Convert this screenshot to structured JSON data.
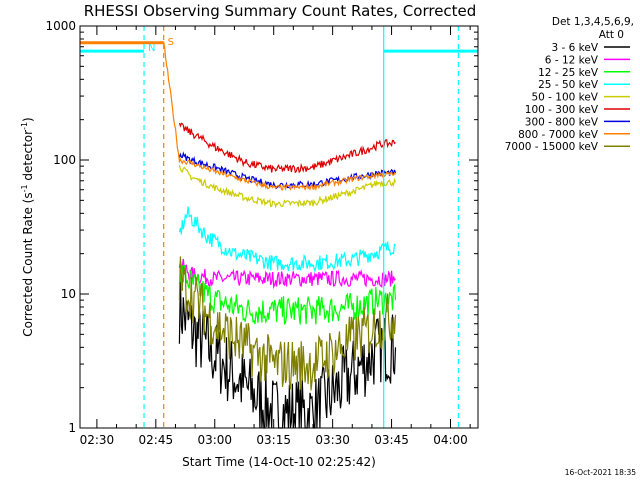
{
  "chart_data": {
    "type": "line",
    "title": "RHESSI Observing Summary Count Rates, Corrected",
    "xlabel": "Start Time (14-Oct-10 02:25:42)",
    "ylabel_main": "Corrected Count Rate (s",
    "ylabel_sup1": "-1",
    "ylabel_mid": " detector",
    "ylabel_sup2": "-1",
    "ylabel_end": ")",
    "y_scale": "log",
    "ylim": [
      1,
      1000
    ],
    "xlim": [
      "02:25:42",
      "04:07"
    ],
    "x_ticks": [
      "02:30",
      "02:45",
      "03:00",
      "03:15",
      "03:30",
      "03:45",
      "04:00"
    ],
    "y_ticks": [
      "1",
      "10",
      "100",
      "1000"
    ],
    "legend_header": [
      "Det 1,3,4,5,6,9,",
      "Att 0"
    ],
    "legend_position": "right",
    "footer_date": "16-Oct-2021 18:35",
    "series": [
      {
        "name": "3 - 6 keV",
        "color": "#000000",
        "x": [
          "02:51",
          "02:54",
          "03:00",
          "03:08",
          "03:15",
          "03:25",
          "03:35",
          "03:42",
          "03:46"
        ],
        "y": [
          8,
          5.5,
          3.5,
          2,
          1.3,
          1.3,
          2.5,
          4,
          4
        ]
      },
      {
        "name": "6 - 12 keV",
        "color": "#ff00ff",
        "x": [
          "02:51",
          "02:54",
          "03:00",
          "03:08",
          "03:15",
          "03:25",
          "03:35",
          "03:42",
          "03:46"
        ],
        "y": [
          17,
          14,
          13,
          13,
          13,
          13,
          13,
          13,
          13
        ]
      },
      {
        "name": "12 - 25 keV",
        "color": "#00ff00",
        "x": [
          "02:51",
          "02:54",
          "03:00",
          "03:08",
          "03:15",
          "03:25",
          "03:35",
          "03:42",
          "03:46"
        ],
        "y": [
          15,
          12,
          9,
          7.5,
          7.5,
          7.5,
          8,
          9,
          9
        ]
      },
      {
        "name": "25 - 50 keV",
        "color": "#00ffff",
        "x": [
          "02:51",
          "02:53",
          "02:58",
          "03:05",
          "03:15",
          "03:25",
          "03:35",
          "03:42",
          "03:46"
        ],
        "y": [
          28,
          40,
          27,
          20,
          17,
          17,
          18,
          21,
          23
        ]
      },
      {
        "name": "50 - 100 keV",
        "color": "#cccc00",
        "x": [
          "02:51",
          "02:54",
          "03:00",
          "03:08",
          "03:15",
          "03:25",
          "03:35",
          "03:42",
          "03:46"
        ],
        "y": [
          90,
          75,
          62,
          52,
          47,
          48,
          58,
          68,
          68
        ]
      },
      {
        "name": "100 - 300 keV",
        "color": "#dd0000",
        "x": [
          "02:51",
          "02:54",
          "03:00",
          "03:08",
          "03:15",
          "03:25",
          "03:35",
          "03:42",
          "03:46"
        ],
        "y": [
          180,
          160,
          125,
          95,
          85,
          88,
          110,
          130,
          135
        ]
      },
      {
        "name": "300 - 800 keV",
        "color": "#0000dd",
        "x": [
          "02:51",
          "02:54",
          "03:00",
          "03:08",
          "03:15",
          "03:25",
          "03:35",
          "03:42",
          "03:46"
        ],
        "y": [
          110,
          100,
          88,
          73,
          65,
          66,
          74,
          80,
          80
        ]
      },
      {
        "name": "800 - 7000 keV",
        "color": "#ff8000",
        "x": [
          "02:19",
          "02:47",
          "02:51",
          "02:54",
          "03:00",
          "03:08",
          "03:15",
          "03:25",
          "03:35",
          "03:42",
          "03:46"
        ],
        "y": [
          750,
          750,
          100,
          95,
          82,
          70,
          62,
          63,
          72,
          78,
          78
        ]
      },
      {
        "name": "7000 - 15000 keV",
        "color": "#808000",
        "x": [
          "02:51",
          "02:54",
          "03:00",
          "03:08",
          "03:15",
          "03:25",
          "03:35",
          "03:42",
          "03:46"
        ],
        "y": [
          13,
          10,
          6,
          4,
          3,
          3,
          4.5,
          6,
          7
        ]
      }
    ],
    "cyan_levels": [
      {
        "x": [
          "02:19",
          "02:42"
        ],
        "y": 650
      },
      {
        "x": [
          "03:43",
          "04:07"
        ],
        "y": 650
      }
    ],
    "markers": [
      {
        "label": "S",
        "time": "02:47",
        "color": "#ff8000",
        "style": "dashed"
      },
      {
        "label": "N",
        "time": "02:42",
        "color": "#00ffff",
        "style": "dashed"
      },
      {
        "label": "",
        "time": "04:02",
        "color": "#00ffff",
        "style": "dashed"
      },
      {
        "label": "",
        "time": "03:43",
        "color": "#00ffff",
        "style": "solid"
      }
    ]
  }
}
